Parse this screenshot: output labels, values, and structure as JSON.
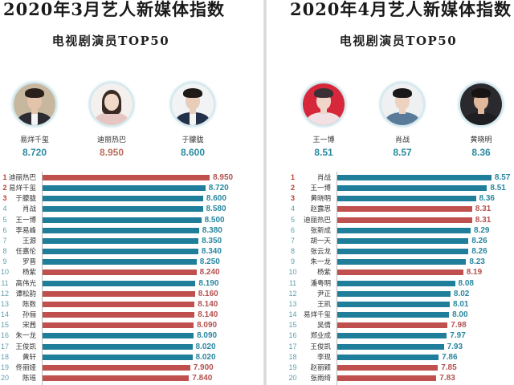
{
  "theme": {
    "rank_top_color": "#c0392b",
    "rank_color": "#5f9fb0",
    "label_color_for": {
      "#c0504d": "#b4524e",
      "#1f7f9b": "#2a87a0"
    }
  },
  "panels": [
    {
      "title": "2020年3月艺人新媒体指数",
      "subtitle": "电视剧演员TOP50",
      "top3": [
        {
          "name": "易烊千玺",
          "score": "8.720",
          "score_color": "#2a8aa0",
          "photo": {
            "bg": "#c8b79f",
            "hair": "#2a211c",
            "face": "#e3c3a9",
            "clothes": "#2b2b31",
            "style": ""
          }
        },
        {
          "name": "迪丽热巴",
          "score": "8.950",
          "score_color": "#b86e5c",
          "photo": {
            "bg": "#f4f0ee",
            "hair": "#3b2a22",
            "face": "#f1d9c9",
            "clothes": "#e6c6c2",
            "style": "long-hair"
          }
        },
        {
          "name": "于朦胧",
          "score": "8.600",
          "score_color": "#2a8aa0",
          "photo": {
            "bg": "#f2f3f4",
            "hair": "#1f1a18",
            "face": "#e8cdb8",
            "clothes": "#24314b",
            "style": ""
          }
        }
      ]
    },
    {
      "title": "2020年4月艺人新媒体指数",
      "subtitle": "电视剧演员TOP50",
      "top3": [
        {
          "name": "王一博",
          "score": "8.51",
          "score_color": "#2a8aa0",
          "photo": {
            "bg": "#d6283a",
            "hair": "#3a3036",
            "face": "#f0d6c8",
            "clothes": "#f1e1e5",
            "style": ""
          }
        },
        {
          "name": "肖战",
          "score": "8.57",
          "score_color": "#2a8aa0",
          "photo": {
            "bg": "#eef0f2",
            "hair": "#1a1818",
            "face": "#ecd2bf",
            "clothes": "#5a7a9a",
            "style": ""
          }
        },
        {
          "name": "黄晓明",
          "score": "8.36",
          "score_color": "#2a8aa0",
          "photo": {
            "bg": "#2a2a2e",
            "hair": "#181414",
            "face": "#e2b89a",
            "clothes": "#1f1f23",
            "style": ""
          }
        }
      ]
    }
  ],
  "chart_data": [
    {
      "type": "bar",
      "orientation": "horizontal",
      "title": "2020年3月艺人新媒体指数",
      "subtitle": "电视剧演员TOP50",
      "xlabel": "",
      "ylabel": "",
      "xlim": [
        0,
        10
      ],
      "grid": false,
      "legend": null,
      "ranks": [
        "1",
        "2",
        "3",
        "4",
        "5",
        "6",
        "7",
        "8",
        "9",
        "10",
        "11",
        "12",
        "13",
        "14",
        "15",
        "16",
        "17",
        "18",
        "19",
        "20"
      ],
      "categories": [
        "迪丽热巴",
        "易烊千玺",
        "于朦胧",
        "肖战",
        "王一博",
        "李易峰",
        "王源",
        "任嘉伦",
        "罗晋",
        "杨紫",
        "高伟光",
        "谭松韵",
        "陈数",
        "孙俪",
        "宋茜",
        "朱一龙",
        "王俊凯",
        "黄轩",
        "佟丽娅",
        "陈瑶"
      ],
      "values": [
        8.95,
        8.72,
        8.6,
        8.58,
        8.5,
        8.38,
        8.35,
        8.34,
        8.25,
        8.24,
        8.19,
        8.16,
        8.14,
        8.14,
        8.09,
        8.09,
        8.02,
        8.02,
        7.9,
        7.84
      ],
      "value_labels": [
        "8.950",
        "8.720",
        "8.600",
        "8.580",
        "8.500",
        "8.380",
        "8.350",
        "8.340",
        "8.250",
        "8.240",
        "8.190",
        "8.160",
        "8.140",
        "8.140",
        "8.090",
        "8.090",
        "8.020",
        "8.020",
        "7.900",
        "7.840"
      ],
      "bar_colors": [
        "#c0504d",
        "#1f7f9b",
        "#1f7f9b",
        "#1f7f9b",
        "#1f7f9b",
        "#1f7f9b",
        "#1f7f9b",
        "#1f7f9b",
        "#1f7f9b",
        "#c0504d",
        "#1f7f9b",
        "#c0504d",
        "#c0504d",
        "#c0504d",
        "#c0504d",
        "#1f7f9b",
        "#1f7f9b",
        "#1f7f9b",
        "#c0504d",
        "#c0504d"
      ]
    },
    {
      "type": "bar",
      "orientation": "horizontal",
      "title": "2020年4月艺人新媒体指数",
      "subtitle": "电视剧演员TOP50",
      "xlabel": "",
      "ylabel": "",
      "xlim": [
        6.5,
        8.7
      ],
      "grid": false,
      "legend": null,
      "ranks": [
        "1",
        "2",
        "3",
        "4",
        "5",
        "6",
        "7",
        "8",
        "9",
        "10",
        "11",
        "12",
        "13",
        "14",
        "15",
        "16",
        "17",
        "18",
        "19",
        "20"
      ],
      "categories": [
        "肖战",
        "王一博",
        "黄晓明",
        "赵露思",
        "迪丽热巴",
        "张新成",
        "胡一天",
        "张云龙",
        "朱一龙",
        "杨紫",
        "潘粤明",
        "尹正",
        "王凯",
        "易烊千玺",
        "吴倩",
        "郑业成",
        "王俊凯",
        "李现",
        "赵丽颖",
        "张雨绮"
      ],
      "values": [
        8.57,
        8.51,
        8.36,
        8.31,
        8.31,
        8.29,
        8.26,
        8.26,
        8.23,
        8.19,
        8.08,
        8.02,
        8.01,
        8.0,
        7.98,
        7.97,
        7.93,
        7.86,
        7.85,
        7.83
      ],
      "value_labels": [
        "8.57",
        "8.51",
        "8.36",
        "8.31",
        "8.31",
        "8.29",
        "8.26",
        "8.26",
        "8.23",
        "8.19",
        "8.08",
        "8.02",
        "8.01",
        "8.00",
        "7.98",
        "7.97",
        "7.93",
        "7.86",
        "7.85",
        "7.83"
      ],
      "bar_colors": [
        "#1f7f9b",
        "#1f7f9b",
        "#1f7f9b",
        "#c0504d",
        "#c0504d",
        "#1f7f9b",
        "#1f7f9b",
        "#1f7f9b",
        "#1f7f9b",
        "#c0504d",
        "#1f7f9b",
        "#1f7f9b",
        "#1f7f9b",
        "#1f7f9b",
        "#c0504d",
        "#1f7f9b",
        "#1f7f9b",
        "#1f7f9b",
        "#c0504d",
        "#c0504d"
      ]
    }
  ]
}
